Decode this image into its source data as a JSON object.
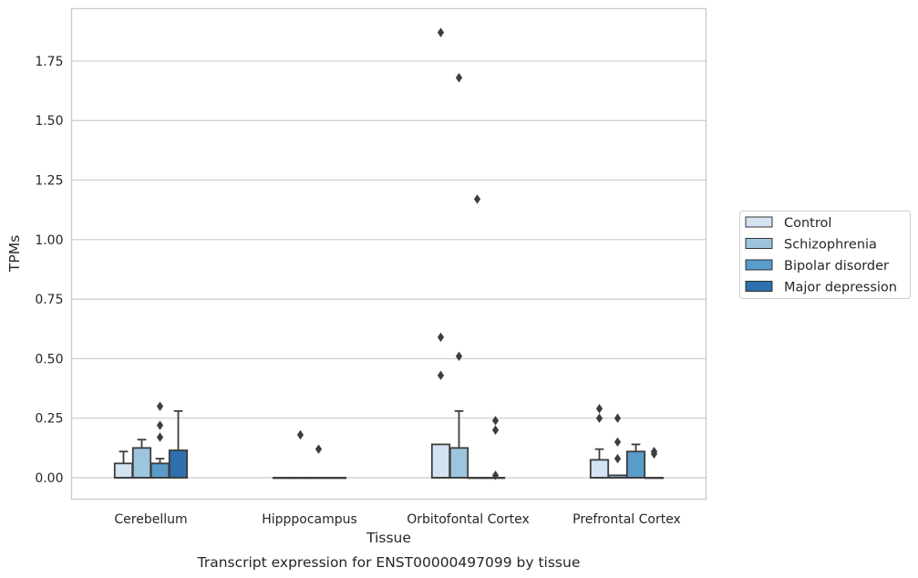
{
  "chart_data": {
    "type": "box",
    "title": "",
    "xlabel": "Tissue",
    "ylabel": "TPMs",
    "caption": "Transcript expression for ENST00000497099 by tissue",
    "categories": [
      "Cerebellum",
      "Hipppocampus",
      "Orbitofontal Cortex",
      "Prefrontal Cortex"
    ],
    "ylim": [
      -0.09,
      1.97
    ],
    "yticks": [
      0.0,
      0.25,
      0.5,
      0.75,
      1.0,
      1.25,
      1.5,
      1.75
    ],
    "ytick_labels": [
      "0.00",
      "0.25",
      "0.50",
      "0.75",
      "1.00",
      "1.25",
      "1.50",
      "1.75"
    ],
    "grid": true,
    "legend_position": "right",
    "series": [
      {
        "name": "Control",
        "color": "#d3e3f2",
        "boxes": [
          {
            "category": "Cerebellum",
            "q1": 0.0,
            "median": 0.0,
            "q3": 0.06,
            "whisker_low": 0.0,
            "whisker_high": 0.11,
            "outliers": []
          },
          {
            "category": "Hipppocampus",
            "q1": 0.0,
            "median": 0.0,
            "q3": 0.0,
            "whisker_low": 0.0,
            "whisker_high": 0.0,
            "outliers": []
          },
          {
            "category": "Orbitofontal Cortex",
            "q1": 0.0,
            "median": 0.0,
            "q3": 0.14,
            "whisker_low": 0.0,
            "whisker_high": 0.14,
            "outliers": [
              0.43,
              0.59,
              1.87
            ]
          },
          {
            "category": "Prefrontal Cortex",
            "q1": 0.0,
            "median": 0.0,
            "q3": 0.075,
            "whisker_low": 0.0,
            "whisker_high": 0.12,
            "outliers": [
              0.25,
              0.29
            ]
          }
        ]
      },
      {
        "name": "Schizophrenia",
        "color": "#9dc6de",
        "boxes": [
          {
            "category": "Cerebellum",
            "q1": 0.0,
            "median": 0.0,
            "q3": 0.125,
            "whisker_low": 0.0,
            "whisker_high": 0.16,
            "outliers": []
          },
          {
            "category": "Hipppocampus",
            "q1": 0.0,
            "median": 0.0,
            "q3": 0.0,
            "whisker_low": 0.0,
            "whisker_high": 0.0,
            "outliers": [
              0.18
            ]
          },
          {
            "category": "Orbitofontal Cortex",
            "q1": 0.0,
            "median": 0.0,
            "q3": 0.125,
            "whisker_low": 0.0,
            "whisker_high": 0.28,
            "outliers": [
              0.51,
              1.68
            ]
          },
          {
            "category": "Prefrontal Cortex",
            "q1": 0.0,
            "median": 0.0,
            "q3": 0.01,
            "whisker_low": 0.0,
            "whisker_high": 0.01,
            "outliers": [
              0.08,
              0.15,
              0.25
            ]
          }
        ]
      },
      {
        "name": "Bipolar disorder",
        "color": "#5a9cca",
        "boxes": [
          {
            "category": "Cerebellum",
            "q1": 0.0,
            "median": 0.0,
            "q3": 0.06,
            "whisker_low": 0.0,
            "whisker_high": 0.08,
            "outliers": [
              0.17,
              0.22,
              0.3
            ]
          },
          {
            "category": "Hipppocampus",
            "q1": 0.0,
            "median": 0.0,
            "q3": 0.0,
            "whisker_low": 0.0,
            "whisker_high": 0.0,
            "outliers": [
              0.12
            ]
          },
          {
            "category": "Orbitofontal Cortex",
            "q1": 0.0,
            "median": 0.0,
            "q3": 0.0,
            "whisker_low": 0.0,
            "whisker_high": 0.0,
            "outliers": [
              1.17
            ]
          },
          {
            "category": "Prefrontal Cortex",
            "q1": 0.0,
            "median": 0.0,
            "q3": 0.11,
            "whisker_low": 0.0,
            "whisker_high": 0.14,
            "outliers": []
          }
        ]
      },
      {
        "name": "Major depression",
        "color": "#2e6fad",
        "boxes": [
          {
            "category": "Cerebellum",
            "q1": 0.0,
            "median": 0.0,
            "q3": 0.115,
            "whisker_low": 0.0,
            "whisker_high": 0.28,
            "outliers": []
          },
          {
            "category": "Hipppocampus",
            "q1": 0.0,
            "median": 0.0,
            "q3": 0.0,
            "whisker_low": 0.0,
            "whisker_high": 0.0,
            "outliers": []
          },
          {
            "category": "Orbitofontal Cortex",
            "q1": 0.0,
            "median": 0.0,
            "q3": 0.0,
            "whisker_low": 0.0,
            "whisker_high": 0.0,
            "outliers": [
              0.01,
              0.2,
              0.24
            ]
          },
          {
            "category": "Prefrontal Cortex",
            "q1": 0.0,
            "median": 0.0,
            "q3": 0.0,
            "whisker_low": 0.0,
            "whisker_high": 0.0,
            "outliers": [
              0.1,
              0.11
            ]
          }
        ]
      }
    ]
  }
}
